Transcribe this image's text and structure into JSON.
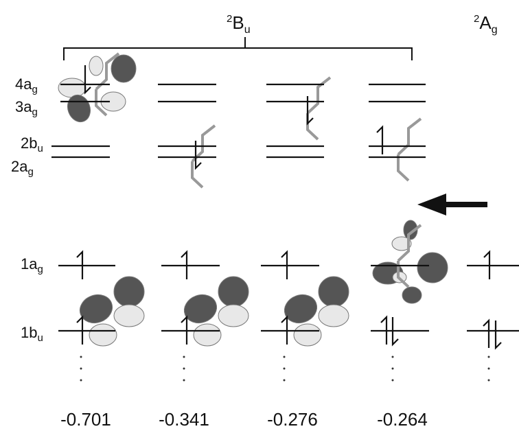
{
  "states": [
    {
      "sup": "2",
      "main": "B",
      "sub": "u"
    },
    {
      "sup": "2",
      "main": "A",
      "sub": "g"
    }
  ],
  "levels": [
    {
      "main": "4a",
      "sub": "g"
    },
    {
      "main": "3a",
      "sub": "g"
    },
    {
      "main": "2b",
      "sub": "u"
    },
    {
      "main": "2a",
      "sub": "g"
    },
    {
      "main": "1a",
      "sub": "g"
    },
    {
      "main": "1b",
      "sub": "u"
    }
  ],
  "energies": [
    -0.701,
    -0.341,
    -0.276,
    -0.264
  ]
}
